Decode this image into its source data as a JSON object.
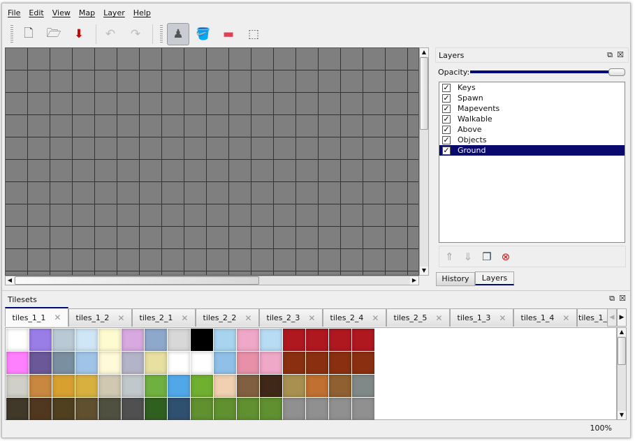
{
  "menu": [
    "File",
    "Edit",
    "View",
    "Map",
    "Layer",
    "Help"
  ],
  "toolbar": [
    {
      "icon": "new-file-icon",
      "glyph": "🗋"
    },
    {
      "icon": "open-folder-icon",
      "glyph": "🗁"
    },
    {
      "icon": "save-icon",
      "glyph": "⬇"
    },
    {
      "icon": "undo-icon",
      "glyph": "↶"
    },
    {
      "icon": "redo-icon",
      "glyph": "↷"
    },
    {
      "icon": "stamp-brush-icon",
      "glyph": "♟",
      "active": true
    },
    {
      "icon": "bucket-fill-icon",
      "glyph": "🪣"
    },
    {
      "icon": "eraser-icon",
      "glyph": "▬"
    },
    {
      "icon": "rect-select-icon",
      "glyph": "⬚"
    }
  ],
  "layers_panel": {
    "title": "Layers",
    "opacity_label": "Opacity:",
    "opacity": 100,
    "layers": [
      {
        "name": "Keys",
        "visible": true
      },
      {
        "name": "Spawn",
        "visible": true
      },
      {
        "name": "Mapevents",
        "visible": true
      },
      {
        "name": "Walkable",
        "visible": true
      },
      {
        "name": "Above",
        "visible": true
      },
      {
        "name": "Objects",
        "visible": true
      },
      {
        "name": "Ground",
        "visible": true,
        "selected": true
      }
    ],
    "buttons": [
      "move-layer-up-icon",
      "move-layer-down-icon",
      "duplicate-layer-icon",
      "remove-layer-icon"
    ],
    "tabs": [
      "History",
      "Layers"
    ],
    "active_tab": "Layers"
  },
  "tilesets": {
    "title": "Tilesets",
    "tabs": [
      "tiles_1_1",
      "tiles_1_2",
      "tiles_2_1",
      "tiles_2_2",
      "tiles_2_3",
      "tiles_2_4",
      "tiles_2_5",
      "tiles_1_3",
      "tiles_1_4",
      "tiles_1_"
    ],
    "active": "tiles_1_1",
    "tile_colors": [
      [
        "#ffffff",
        "#9a7ee8",
        "#b9cad6",
        "#cfe6f6",
        "#fffbd0",
        "#d8a8e0",
        "#8ea8cc",
        "#d8d8d8",
        "#000000",
        "#a8d4f0",
        "#f0a8c8",
        "#b8dcf4",
        "#b01820",
        "#b01820",
        "#b01820",
        "#b01820"
      ],
      [
        "#ff80ff",
        "#6a5898",
        "#7a90a0",
        "#a0c4e8",
        "#fffad8",
        "#b4b4c8",
        "#e8e0a0",
        "#ffffff",
        "#ffffff",
        "#90c0e8",
        "#e890a8",
        "#f0a8c8",
        "#8a3010",
        "#8a3010",
        "#8a3010",
        "#8a3010"
      ],
      [
        "#d0d0c8",
        "#c88840",
        "#d8a030",
        "#d8b040",
        "#d0c8b0",
        "#c0c8cc",
        "#70b040",
        "#50a8e8",
        "#70b030",
        "#f0d0b0",
        "#806040",
        "#402818",
        "#a89050",
        "#c07030",
        "#906030",
        "#808888"
      ],
      [
        "#403828",
        "#503820",
        "#504020",
        "#605030",
        "#505040",
        "#505050",
        "#306020",
        "#305070",
        "#609030",
        "#609030",
        "#609030",
        "#609030",
        "#909090",
        "#909090",
        "#909090",
        "#909090"
      ]
    ]
  },
  "status": {
    "zoom": "100%"
  }
}
